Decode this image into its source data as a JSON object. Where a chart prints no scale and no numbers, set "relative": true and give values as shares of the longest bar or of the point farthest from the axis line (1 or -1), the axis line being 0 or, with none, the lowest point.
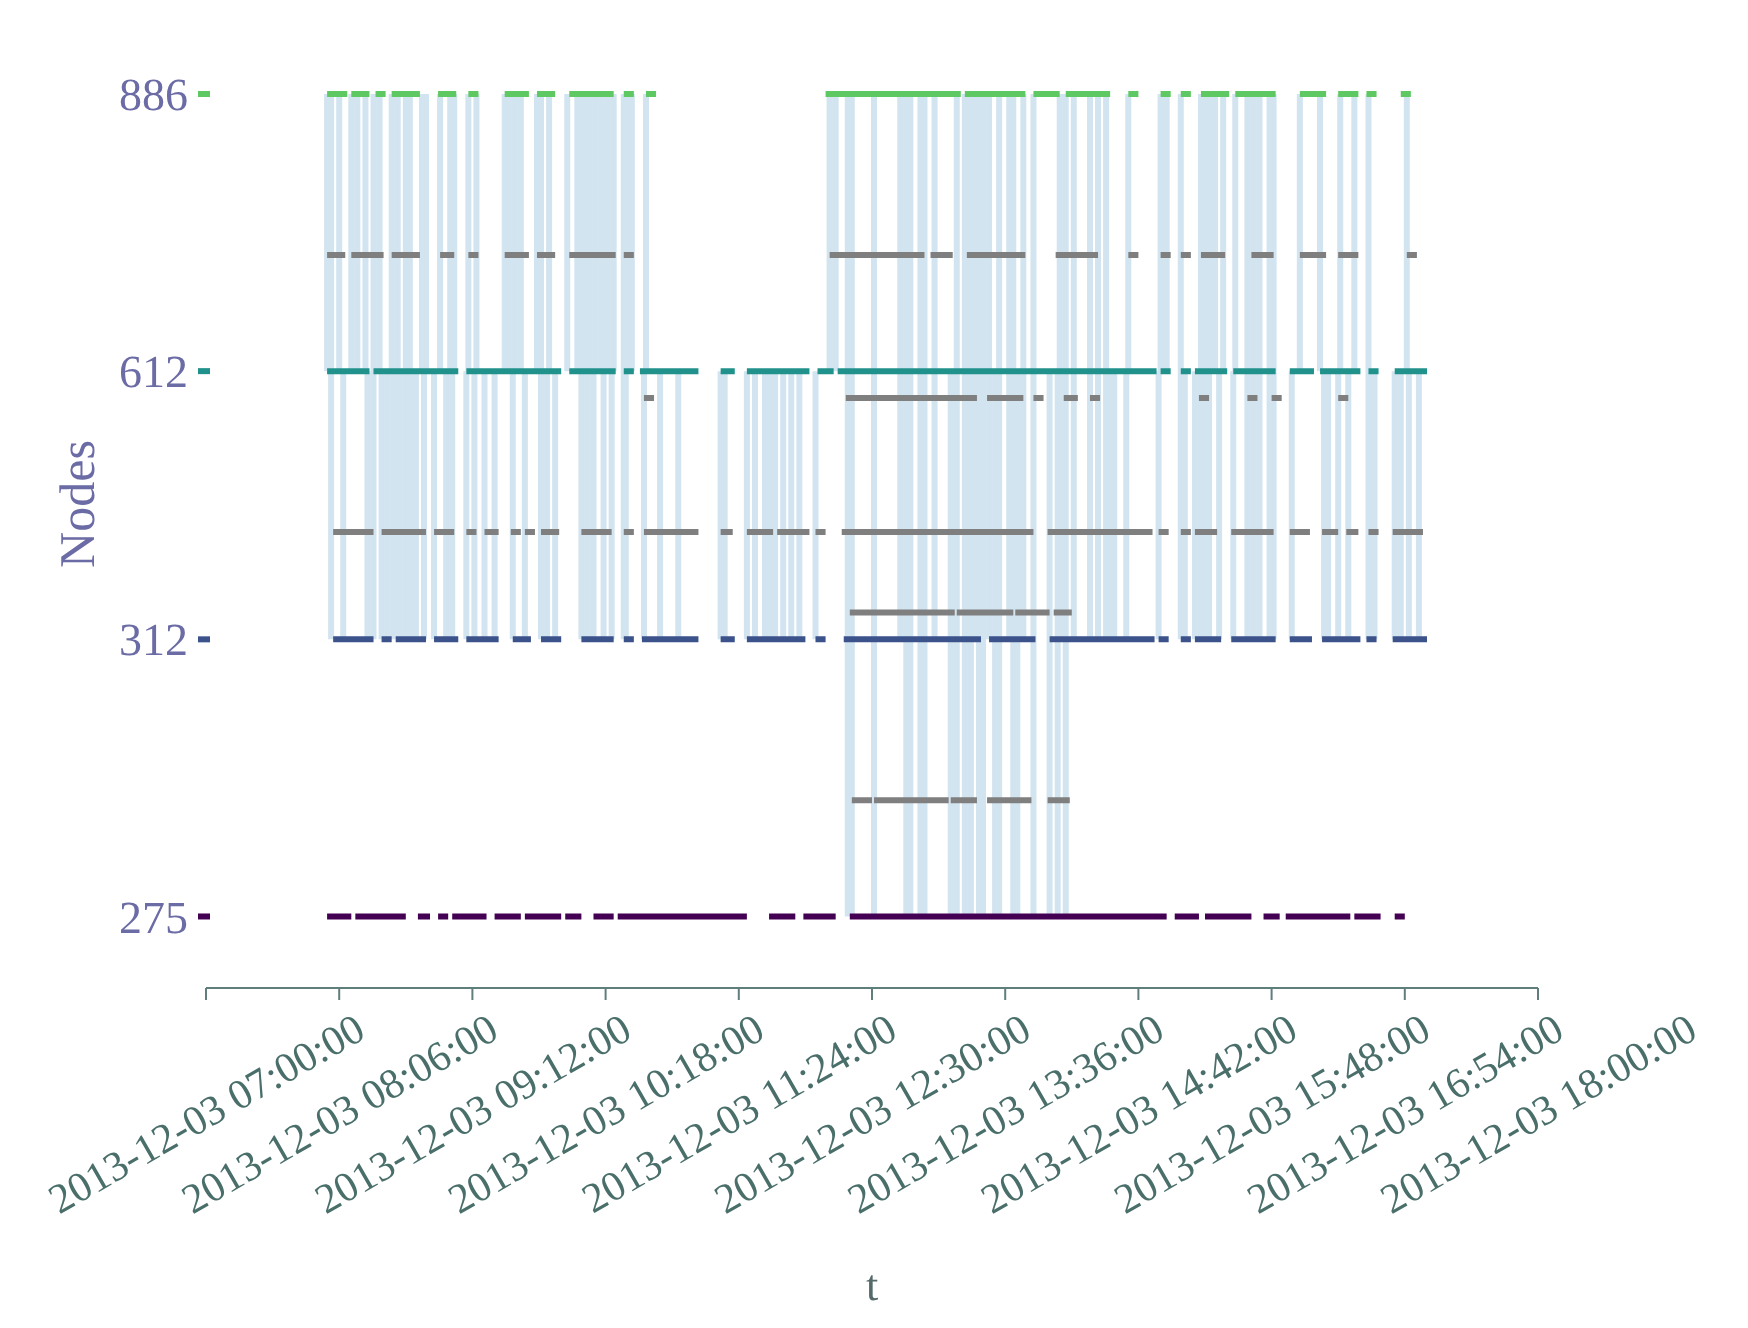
{
  "chart_data": {
    "type": "line",
    "xlabel": "t",
    "ylabel": "Nodes",
    "relative": true,
    "legend": "left",
    "xlim": [
      "2013-12-03T07:00",
      "2013-12-03T18:00"
    ],
    "xticks": [
      {
        "value": "2013-12-03T07:00",
        "label": "2013-12-03 07:00:00"
      },
      {
        "value": "2013-12-03T08:06",
        "label": "2013-12-03 08:06:00"
      },
      {
        "value": "2013-12-03T09:12",
        "label": "2013-12-03 09:12:00"
      },
      {
        "value": "2013-12-03T10:18",
        "label": "2013-12-03 10:18:00"
      },
      {
        "value": "2013-12-03T11:24",
        "label": "2013-12-03 11:24:00"
      },
      {
        "value": "2013-12-03T12:30",
        "label": "2013-12-03 12:30:00"
      },
      {
        "value": "2013-12-03T13:36",
        "label": "2013-12-03 13:36:00"
      },
      {
        "value": "2013-12-03T14:42",
        "label": "2013-12-03 14:42:00"
      },
      {
        "value": "2013-12-03T15:48",
        "label": "2013-12-03 15:48:00"
      },
      {
        "value": "2013-12-03T16:54",
        "label": "2013-12-03 16:54:00"
      },
      {
        "value": "2013-12-03T18:00",
        "label": "2013-12-03 18:00:00"
      }
    ],
    "series": [
      {
        "color": "#d2e4f0",
        "x": [
          "2013-12-03T08:00",
          "2013-12-03T08:00",
          null,
          "2013-12-03T08:02",
          "2013-12-03T08:02",
          null,
          "2013-12-03T08:06",
          "2013-12-03T08:06",
          null,
          "2013-12-03T08:08",
          "2013-12-03T08:08",
          null,
          "2013-12-03T08:12",
          "2013-12-03T08:12",
          null,
          "2013-12-03T08:15",
          "2013-12-03T08:15",
          null,
          "2013-12-03T08:19",
          "2013-12-03T08:19",
          null,
          "2013-12-03T08:20",
          "2013-12-03T08:20",
          null,
          "2013-12-03T08:23",
          "2013-12-03T08:23",
          null,
          "2013-12-03T08:26",
          "2013-12-03T08:26",
          null,
          "2013-12-03T08:27",
          "2013-12-03T08:27",
          null,
          "2013-12-03T08:30",
          "2013-12-03T08:30",
          null,
          "2013-12-03T08:32",
          "2013-12-03T08:32",
          null,
          "2013-12-03T08:33",
          "2013-12-03T08:33",
          null,
          "2013-12-03T08:35",
          "2013-12-03T08:35",
          null,
          "2013-12-03T08:36",
          "2013-12-03T08:36",
          null,
          "2013-12-03T08:39",
          "2013-12-03T08:39",
          null,
          "2013-12-03T08:41",
          "2013-12-03T08:41",
          null,
          "2013-12-03T08:44",
          "2013-12-03T08:44",
          null,
          "2013-12-03T08:47",
          "2013-12-03T08:47",
          null,
          "2013-12-03T08:48",
          "2013-12-03T08:48",
          null,
          "2013-12-03T08:49",
          "2013-12-03T08:49",
          null,
          "2013-12-03T08:53",
          "2013-12-03T08:53",
          null,
          "2013-12-03T08:56",
          "2013-12-03T08:56",
          null,
          "2013-12-03T08:59",
          "2013-12-03T08:59",
          null,
          "2013-12-03T09:01",
          "2013-12-03T09:01",
          null,
          "2013-12-03T09:02",
          "2013-12-03T09:02",
          null,
          "2013-12-03T09:03",
          "2013-12-03T09:03",
          null,
          "2013-12-03T09:09",
          "2013-12-03T09:09",
          null,
          "2013-12-03T09:10",
          "2013-12-03T09:10",
          null,
          "2013-12-03T09:13",
          "2013-12-03T09:13",
          null,
          "2013-12-03T09:14",
          "2013-12-03T09:14",
          null,
          "2013-12-03T09:18",
          "2013-12-03T09:18",
          null,
          "2013-12-03T09:23",
          "2013-12-03T09:23",
          null,
          "2013-12-03T09:28",
          "2013-12-03T09:28",
          null,
          "2013-12-03T09:30",
          "2013-12-03T09:30",
          null,
          "2013-12-03T09:32",
          "2013-12-03T09:32",
          null,
          "2013-12-03T09:33",
          "2013-12-03T09:33",
          null,
          "2013-12-03T09:36",
          "2013-12-03T09:36",
          null,
          "2013-12-03T09:38",
          "2013-12-03T09:38",
          null,
          "2013-12-03T09:44",
          "2013-12-03T09:44",
          null,
          "2013-12-03T09:46",
          "2013-12-03T09:46",
          null,
          "2013-12-03T09:49",
          "2013-12-03T09:49",
          null,
          "2013-12-03T09:50",
          "2013-12-03T09:50",
          null,
          "2013-12-03T09:53",
          "2013-12-03T09:53",
          null,
          "2013-12-03T09:59",
          "2013-12-03T09:59",
          null,
          "2013-12-03T10:04",
          "2013-12-03T10:04",
          null,
          "2013-12-03T10:06",
          "2013-12-03T10:06",
          null,
          "2013-12-03T10:08",
          "2013-12-03T10:08",
          null,
          "2013-12-03T10:09",
          "2013-12-03T10:09",
          null,
          "2013-12-03T10:10",
          "2013-12-03T10:10",
          null,
          "2013-12-03T10:12",
          "2013-12-03T10:12",
          null,
          "2013-12-03T10:13",
          "2013-12-03T10:13",
          null,
          "2013-12-03T10:16",
          "2013-12-03T10:16",
          null,
          "2013-12-03T10:17",
          "2013-12-03T10:17",
          null,
          "2013-12-03T10:19",
          "2013-12-03T10:19",
          null,
          "2013-12-03T10:21",
          "2013-12-03T10:21",
          null,
          "2013-12-03T10:22",
          "2013-12-03T10:22",
          null,
          "2013-12-03T10:27",
          "2013-12-03T10:27",
          null,
          "2013-12-03T10:28",
          "2013-12-03T10:28",
          null,
          "2013-12-03T10:29",
          "2013-12-03T10:29",
          null,
          "2013-12-03T10:31",
          "2013-12-03T10:31",
          null,
          "2013-12-03T10:37",
          "2013-12-03T10:37",
          null,
          "2013-12-03T10:38",
          "2013-12-03T10:38",
          null,
          "2013-12-03T10:45",
          "2013-12-03T10:45",
          null,
          "2013-12-03T10:54",
          "2013-12-03T10:54",
          null,
          "2013-12-03T11:15",
          "2013-12-03T11:15",
          null,
          "2013-12-03T11:17",
          "2013-12-03T11:17",
          null,
          "2013-12-03T11:28",
          "2013-12-03T11:28",
          null,
          "2013-12-03T11:32",
          "2013-12-03T11:32",
          null,
          "2013-12-03T11:37",
          "2013-12-03T11:37",
          null,
          "2013-12-03T11:39",
          "2013-12-03T11:39",
          null,
          "2013-12-03T11:42",
          "2013-12-03T11:42",
          null,
          "2013-12-03T11:46",
          "2013-12-03T11:46",
          null,
          "2013-12-03T11:50",
          "2013-12-03T11:50",
          null,
          "2013-12-03T11:54",
          "2013-12-03T11:54",
          null,
          "2013-12-03T12:02",
          "2013-12-03T12:02",
          null,
          "2013-12-03T12:09",
          "2013-12-03T12:09",
          null,
          "2013-12-03T12:12",
          "2013-12-03T12:12",
          null,
          "2013-12-03T12:18",
          "2013-12-03T12:18",
          null,
          "2013-12-03T12:20",
          "2013-12-03T12:20",
          null,
          "2013-12-03T12:31",
          "2013-12-03T12:31",
          null,
          "2013-12-03T12:44",
          "2013-12-03T12:44",
          null,
          "2013-12-03T12:47",
          "2013-12-03T12:47",
          null,
          "2013-12-03T12:49",
          "2013-12-03T12:49",
          null,
          "2013-12-03T12:54",
          "2013-12-03T12:54",
          null,
          "2013-12-03T12:56",
          "2013-12-03T12:56",
          null,
          "2013-12-03T13:01",
          "2013-12-03T13:01",
          null,
          "2013-12-03T13:09",
          "2013-12-03T13:09",
          null,
          "2013-12-03T13:12",
          "2013-12-03T13:12",
          null,
          "2013-12-03T13:16",
          "2013-12-03T13:16",
          null,
          "2013-12-03T13:18",
          "2013-12-03T13:18",
          null,
          "2013-12-03T13:19",
          "2013-12-03T13:19",
          null,
          "2013-12-03T13:21",
          "2013-12-03T13:21",
          null,
          "2013-12-03T13:23",
          "2013-12-03T13:23",
          null,
          "2013-12-03T13:25",
          "2013-12-03T13:25",
          null,
          "2013-12-03T13:28",
          "2013-12-03T13:28",
          null,
          "2013-12-03T13:31",
          "2013-12-03T13:31",
          null,
          "2013-12-03T13:33",
          "2013-12-03T13:33",
          null,
          "2013-12-03T13:38",
          "2013-12-03T13:38",
          null,
          "2013-12-03T13:40",
          "2013-12-03T13:40",
          null,
          "2013-12-03T13:42",
          "2013-12-03T13:42",
          null,
          "2013-12-03T13:45",
          "2013-12-03T13:45",
          null,
          "2013-12-03T13:50",
          "2013-12-03T13:50",
          null,
          "2013-12-03T13:58",
          "2013-12-03T13:58",
          null,
          "2013-12-03T14:02",
          "2013-12-03T14:02",
          null,
          "2013-12-03T14:03",
          "2013-12-03T14:03",
          null,
          "2013-12-03T14:06",
          "2013-12-03T14:06",
          null,
          "2013-12-03T14:10",
          "2013-12-03T14:10",
          null,
          "2013-12-03T14:18",
          "2013-12-03T14:18",
          null,
          "2013-12-03T14:22",
          "2013-12-03T14:22",
          null,
          "2013-12-03T14:26",
          "2013-12-03T14:26",
          null,
          "2013-12-03T14:28",
          "2013-12-03T14:28",
          null,
          "2013-12-03T14:30",
          "2013-12-03T14:30",
          null,
          "2013-12-03T14:36",
          "2013-12-03T14:36",
          null,
          "2013-12-03T14:37",
          "2013-12-03T14:37",
          null,
          "2013-12-03T14:52",
          "2013-12-03T14:52",
          null,
          "2013-12-03T14:53",
          "2013-12-03T14:53",
          null,
          "2013-12-03T14:56",
          "2013-12-03T14:56",
          null,
          "2013-12-03T15:03",
          "2013-12-03T15:03",
          null,
          "2013-12-03T15:05",
          "2013-12-03T15:05",
          null,
          "2013-12-03T15:10",
          "2013-12-03T15:10",
          null,
          "2013-12-03T15:13",
          "2013-12-03T15:13",
          null,
          "2013-12-03T15:15",
          "2013-12-03T15:15",
          null,
          "2013-12-03T15:17",
          "2013-12-03T15:17",
          null,
          "2013-12-03T15:20",
          "2013-12-03T15:20",
          null,
          "2013-12-03T15:22",
          "2013-12-03T15:22",
          null,
          "2013-12-03T15:24",
          "2013-12-03T15:24",
          null,
          "2013-12-03T15:29",
          "2013-12-03T15:29",
          null,
          "2013-12-03T15:30",
          "2013-12-03T15:30",
          null,
          "2013-12-03T15:36",
          "2013-12-03T15:36",
          null,
          "2013-12-03T15:39",
          "2013-12-03T15:39",
          null,
          "2013-12-03T15:42",
          "2013-12-03T15:42",
          null,
          "2013-12-03T15:47",
          "2013-12-03T15:47",
          null,
          "2013-12-03T15:49",
          "2013-12-03T15:49",
          null,
          "2013-12-03T15:58",
          "2013-12-03T15:58",
          null,
          "2013-12-03T16:02",
          "2013-12-03T16:02",
          null,
          "2013-12-03T16:12",
          "2013-12-03T16:12",
          null,
          "2013-12-03T16:14",
          "2013-12-03T16:14",
          null,
          "2013-12-03T16:16",
          "2013-12-03T16:16",
          null,
          "2013-12-03T16:21",
          "2013-12-03T16:21",
          null,
          "2013-12-03T16:22",
          "2013-12-03T16:22",
          null,
          "2013-12-03T16:26",
          "2013-12-03T16:26",
          null,
          "2013-12-03T16:29",
          "2013-12-03T16:29",
          null,
          "2013-12-03T16:36",
          "2013-12-03T16:36",
          null,
          "2013-12-03T16:39",
          "2013-12-03T16:39",
          null,
          "2013-12-03T16:49",
          "2013-12-03T16:49",
          null,
          "2013-12-03T16:52",
          "2013-12-03T16:52",
          null,
          "2013-12-03T16:55",
          "2013-12-03T16:55",
          null,
          "2013-12-03T16:56",
          "2013-12-03T16:56",
          null,
          "2013-12-03T17:01",
          "2013-12-03T17:01",
          null
        ],
        "values": [
          0.69,
          1,
          null,
          0.39,
          1,
          null,
          0.69,
          1,
          null,
          0.39,
          0.69,
          null,
          0.69,
          1,
          null,
          0.69,
          1,
          null,
          0.69,
          1,
          null,
          0.39,
          0.69,
          null,
          0.39,
          1,
          null,
          0.69,
          1,
          null,
          0.39,
          0.69,
          null,
          0.39,
          0.69,
          null,
          0.69,
          1,
          null,
          0.39,
          0.69,
          null,
          0.69,
          1,
          null,
          0.39,
          0.69,
          null,
          0.39,
          1,
          null,
          0.39,
          1,
          null,
          0.39,
          0.69,
          null,
          0.69,
          1,
          null,
          0.39,
          0.69,
          null,
          0.69,
          1,
          null,
          0.39,
          0.69,
          null,
          0.69,
          1,
          null,
          0.39,
          0.69,
          null,
          0.69,
          1,
          null,
          0.39,
          0.69,
          null,
          0.69,
          1,
          null,
          0.39,
          0.69,
          null,
          0.69,
          1,
          null,
          0.39,
          0.69,
          null,
          0.69,
          1,
          null,
          0.39,
          0.69,
          null,
          0.39,
          0.69,
          null,
          0.69,
          1,
          null,
          0.69,
          1,
          null,
          0.39,
          0.69,
          null,
          0.69,
          1,
          null,
          0.69,
          1,
          null,
          0.39,
          0.69,
          null,
          0.69,
          1,
          null,
          0.39,
          1,
          null,
          0.39,
          0.69,
          null,
          0.69,
          1,
          null,
          0.39,
          0.69,
          null,
          0.69,
          1,
          null,
          0.69,
          1,
          null,
          0.39,
          1,
          null,
          0.69,
          1,
          null,
          0.39,
          0.69,
          null,
          0.69,
          1,
          null,
          0.39,
          0.69,
          null,
          0.69,
          1,
          null,
          0.69,
          1,
          null,
          0.39,
          0.69,
          null,
          0.69,
          1,
          null,
          0.39,
          0.69,
          null,
          0.69,
          1,
          null,
          0.39,
          1,
          null,
          0.39,
          0.69,
          null,
          0.69,
          1,
          null,
          0.69,
          1,
          null,
          0.39,
          0.69,
          null,
          0.69,
          1,
          null,
          0.39,
          0.69,
          null,
          0.39,
          0.69,
          null,
          0.39,
          0.69,
          null,
          0.39,
          0.69,
          null,
          0.39,
          0.69,
          null,
          0.39,
          0.69,
          null,
          0.39,
          0.69,
          null,
          0.39,
          0.69,
          null,
          0.39,
          0.69,
          null,
          0.39,
          0.69,
          null,
          0.39,
          0.69,
          null,
          0.39,
          0.69,
          null,
          0.39,
          0.69,
          null,
          0.69,
          1,
          null,
          0.69,
          1,
          null,
          0.08,
          1,
          null,
          0.08,
          1,
          null,
          0.08,
          1,
          null,
          0.39,
          1,
          null,
          0.08,
          1,
          null,
          0.08,
          1,
          null,
          0.08,
          1,
          null,
          0.08,
          1,
          null,
          0.39,
          1,
          null,
          0.08,
          0.69,
          null,
          0.08,
          1,
          null,
          0.08,
          1,
          null,
          0.39,
          1,
          null,
          0.08,
          1,
          null,
          0.39,
          1,
          null,
          0.08,
          1,
          null,
          0.08,
          1,
          null,
          0.39,
          1,
          null,
          0.08,
          0.69,
          null,
          0.08,
          1,
          null,
          0.39,
          1,
          null,
          0.08,
          1,
          null,
          0.08,
          0.69,
          null,
          0.39,
          1,
          null,
          0.08,
          1,
          null,
          0.08,
          0.69,
          null,
          0.08,
          0.69,
          null,
          0.39,
          1,
          null,
          0.08,
          1,
          null,
          0.39,
          1,
          null,
          0.39,
          1,
          null,
          0.39,
          1,
          null,
          0.39,
          1,
          null,
          0.39,
          0.69,
          null,
          0.39,
          0.69,
          null,
          0.39,
          0.69,
          null,
          0.69,
          1,
          null,
          0.39,
          0.69,
          null,
          0.69,
          1,
          null,
          0.69,
          1,
          null,
          0.39,
          1,
          null,
          0.39,
          0.69,
          null,
          0.39,
          0.69,
          null,
          0.39,
          1,
          null,
          0.39,
          1,
          null,
          0.39,
          1,
          null,
          0.69,
          1,
          null,
          0.39,
          0.69,
          null,
          0.69,
          1,
          null,
          0.39,
          0.69,
          null,
          0.69,
          1,
          null,
          0.39,
          1,
          null,
          0.39,
          1,
          null,
          0.39,
          1,
          null,
          0.39,
          1,
          null,
          0.39,
          1,
          null,
          0.39,
          0.69,
          null,
          0.69,
          1,
          null,
          0.69,
          1,
          null,
          0.39,
          0.69,
          null,
          0.39,
          0.69,
          null,
          0.39,
          0.69,
          null,
          0.69,
          1,
          null,
          0.39,
          0.69,
          null,
          0.69,
          1,
          null,
          0.39,
          1,
          null,
          0.39,
          0.69,
          null,
          0.39,
          0.69,
          null,
          0.39,
          0.69,
          null,
          0.69,
          1,
          null,
          0.39,
          0.69,
          null,
          0.39,
          0.69,
          null
        ]
      },
      {
        "color": "#7f7f7f",
        "x": [
          "2013-12-03T08:00",
          "2013-12-03T08:09",
          null,
          "2013-12-03T08:12",
          "2013-12-03T08:28",
          null,
          "2013-12-03T08:32",
          "2013-12-03T08:46",
          null,
          "2013-12-03T08:56",
          "2013-12-03T09:03",
          null,
          "2013-12-03T09:10",
          "2013-12-03T09:15",
          null,
          "2013-12-03T09:28",
          "2013-12-03T09:40",
          null,
          "2013-12-03T09:44",
          "2013-12-03T09:53",
          null,
          "2013-12-03T10:00",
          "2013-12-03T10:23",
          null,
          "2013-12-03T10:27",
          "2013-12-03T10:32",
          null,
          "2013-12-03T12:09",
          "2013-12-03T12:56",
          null,
          "2013-12-03T12:59",
          "2013-12-03T13:10",
          null,
          "2013-12-03T13:17",
          "2013-12-03T13:46",
          null,
          "2013-12-03T14:01",
          "2013-12-03T14:22",
          null,
          "2013-12-03T14:37",
          "2013-12-03T14:42",
          null,
          "2013-12-03T14:53",
          "2013-12-03T14:58",
          null,
          "2013-12-03T15:03",
          "2013-12-03T15:08",
          null,
          "2013-12-03T15:13",
          "2013-12-03T15:25",
          null,
          "2013-12-03T15:38",
          "2013-12-03T15:49",
          null,
          "2013-12-03T16:02",
          "2013-12-03T16:15",
          null,
          "2013-12-03T16:21",
          "2013-12-03T16:31",
          null,
          "2013-12-03T16:55",
          "2013-12-03T17:00",
          null
        ],
        "values": [
          0.82,
          0.82,
          null,
          0.82,
          0.82,
          null,
          0.82,
          0.82,
          null,
          0.82,
          0.82,
          null,
          0.82,
          0.82,
          null,
          0.82,
          0.82,
          null,
          0.82,
          0.82,
          null,
          0.82,
          0.82,
          null,
          0.82,
          0.82,
          null,
          0.82,
          0.82,
          null,
          0.82,
          0.82,
          null,
          0.82,
          0.82,
          null,
          0.82,
          0.82,
          null,
          0.82,
          0.82,
          null,
          0.82,
          0.82,
          null,
          0.82,
          0.82,
          null,
          0.82,
          0.82,
          null,
          0.82,
          0.82,
          null,
          0.82,
          0.82,
          null,
          0.82,
          0.82,
          null,
          0.82,
          0.82,
          null
        ]
      },
      {
        "color": "#7f7f7f",
        "x": [
          "2013-12-03T10:37",
          "2013-12-03T10:42",
          null,
          "2013-12-03T12:17",
          "2013-12-03T13:22",
          null,
          "2013-12-03T13:27",
          "2013-12-03T13:45",
          null,
          "2013-12-03T13:50",
          "2013-12-03T13:55",
          null,
          "2013-12-03T14:05",
          "2013-12-03T14:12",
          null,
          "2013-12-03T14:18",
          "2013-12-03T14:23",
          null,
          "2013-12-03T15:12",
          "2013-12-03T15:17",
          null,
          "2013-12-03T15:36",
          "2013-12-03T15:41",
          null,
          "2013-12-03T15:48",
          "2013-12-03T15:53",
          null,
          "2013-12-03T16:21",
          "2013-12-03T16:26",
          null
        ],
        "values": [
          0.66,
          0.66,
          null,
          0.66,
          0.66,
          null,
          0.66,
          0.66,
          null,
          0.66,
          0.66,
          null,
          0.66,
          0.66,
          null,
          0.66,
          0.66,
          null,
          0.66,
          0.66,
          null,
          0.66,
          0.66,
          null,
          0.66,
          0.66,
          null,
          0.66,
          0.66,
          null
        ]
      },
      {
        "color": "#7f7f7f",
        "x": [
          "2013-12-03T08:03",
          "2013-12-03T08:23",
          null,
          "2013-12-03T08:27",
          "2013-12-03T08:49",
          null,
          "2013-12-03T08:53",
          "2013-12-03T09:03",
          null,
          "2013-12-03T09:09",
          "2013-12-03T09:14",
          null,
          "2013-12-03T09:18",
          "2013-12-03T09:25",
          null,
          "2013-12-03T09:31",
          "2013-12-03T09:36",
          null,
          "2013-12-03T09:38",
          "2013-12-03T09:43",
          null,
          "2013-12-03T09:46",
          "2013-12-03T09:55",
          null,
          "2013-12-03T10:06",
          "2013-12-03T10:21",
          null,
          "2013-12-03T10:27",
          "2013-12-03T10:32",
          null,
          "2013-12-03T10:37",
          "2013-12-03T11:04",
          null,
          "2013-12-03T11:15",
          "2013-12-03T11:21",
          null,
          "2013-12-03T11:28",
          "2013-12-03T11:41",
          null,
          "2013-12-03T11:43",
          "2013-12-03T11:59",
          null,
          "2013-12-03T12:02",
          "2013-12-03T12:07",
          null,
          "2013-12-03T12:15",
          "2013-12-03T13:50",
          null,
          "2013-12-03T13:57",
          "2013-12-03T14:49",
          null,
          "2013-12-03T14:52",
          "2013-12-03T14:57",
          null,
          "2013-12-03T15:03",
          "2013-12-03T15:08",
          null,
          "2013-12-03T15:10",
          "2013-12-03T15:21",
          null,
          "2013-12-03T15:28",
          "2013-12-03T15:49",
          null,
          "2013-12-03T15:57",
          "2013-12-03T16:07",
          null,
          "2013-12-03T16:13",
          "2013-12-03T16:21",
          null,
          "2013-12-03T16:25",
          "2013-12-03T16:31",
          null,
          "2013-12-03T16:36",
          "2013-12-03T16:41",
          null,
          "2013-12-03T16:48",
          "2013-12-03T17:03",
          null
        ],
        "values": [
          0.51,
          0.51,
          null,
          0.51,
          0.51,
          null,
          0.51,
          0.51,
          null,
          0.51,
          0.51,
          null,
          0.51,
          0.51,
          null,
          0.51,
          0.51,
          null,
          0.51,
          0.51,
          null,
          0.51,
          0.51,
          null,
          0.51,
          0.51,
          null,
          0.51,
          0.51,
          null,
          0.51,
          0.51,
          null,
          0.51,
          0.51,
          null,
          0.51,
          0.51,
          null,
          0.51,
          0.51,
          null,
          0.51,
          0.51,
          null,
          0.51,
          0.51,
          null,
          0.51,
          0.51,
          null,
          0.51,
          0.51,
          null,
          0.51,
          0.51,
          null,
          0.51,
          0.51,
          null,
          0.51,
          0.51,
          null,
          0.51,
          0.51,
          null,
          0.51,
          0.51,
          null,
          0.51,
          0.51,
          null,
          0.51,
          0.51,
          null,
          0.51,
          0.51,
          null
        ]
      },
      {
        "color": "#7f7f7f",
        "x": [
          "2013-12-03T12:19",
          "2013-12-03T13:11",
          null,
          "2013-12-03T13:12",
          "2013-12-03T13:40",
          null,
          "2013-12-03T13:41",
          "2013-12-03T13:58",
          null,
          "2013-12-03T14:00",
          "2013-12-03T14:09",
          null
        ],
        "values": [
          0.42,
          0.42,
          null,
          0.42,
          0.42,
          null,
          0.42,
          0.42,
          null,
          0.42,
          0.42,
          null
        ]
      },
      {
        "color": "#7f7f7f",
        "x": [
          "2013-12-03T12:20",
          "2013-12-03T12:30",
          null,
          "2013-12-03T12:31",
          "2013-12-03T13:08",
          null,
          "2013-12-03T13:09",
          "2013-12-03T13:22",
          null,
          "2013-12-03T13:27",
          "2013-12-03T13:49",
          null,
          "2013-12-03T13:57",
          "2013-12-03T14:08",
          null
        ],
        "values": [
          0.21,
          0.21,
          null,
          0.21,
          0.21,
          null,
          0.21,
          0.21,
          null,
          0.21,
          0.21,
          null,
          0.21,
          0.21,
          null
        ]
      },
      {
        "name": "886",
        "color": "#5ec962",
        "x": [
          "2013-12-03T08:00",
          "2013-12-03T08:10",
          null,
          "2013-12-03T08:12",
          "2013-12-03T08:21",
          null,
          "2013-12-03T08:24",
          "2013-12-03T08:29",
          null,
          "2013-12-03T08:32",
          "2013-12-03T08:46",
          null,
          "2013-12-03T08:55",
          "2013-12-03T09:04",
          null,
          "2013-12-03T09:10",
          "2013-12-03T09:15",
          null,
          "2013-12-03T09:28",
          "2013-12-03T09:40",
          null,
          "2013-12-03T09:44",
          "2013-12-03T09:53",
          null,
          "2013-12-03T10:00",
          "2013-12-03T10:22",
          null,
          "2013-12-03T10:27",
          "2013-12-03T10:32",
          null,
          "2013-12-03T10:38",
          "2013-12-03T10:43",
          null,
          "2013-12-03T12:07",
          "2013-12-03T13:14",
          null,
          "2013-12-03T13:16",
          "2013-12-03T13:46",
          null,
          "2013-12-03T13:50",
          "2013-12-03T14:03",
          null,
          "2013-12-03T14:06",
          "2013-12-03T14:28",
          null,
          "2013-12-03T14:37",
          "2013-12-03T14:42",
          null,
          "2013-12-03T14:53",
          "2013-12-03T14:58",
          null,
          "2013-12-03T15:03",
          "2013-12-03T15:08",
          null,
          "2013-12-03T15:13",
          "2013-12-03T15:27",
          null,
          "2013-12-03T15:30",
          "2013-12-03T15:50",
          null,
          "2013-12-03T16:02",
          "2013-12-03T16:15",
          null,
          "2013-12-03T16:21",
          "2013-12-03T16:31",
          null,
          "2013-12-03T16:35",
          "2013-12-03T16:40",
          null,
          "2013-12-03T16:52",
          "2013-12-03T16:57",
          null
        ],
        "values": [
          1,
          1,
          null,
          1,
          1,
          null,
          1,
          1,
          null,
          1,
          1,
          null,
          1,
          1,
          null,
          1,
          1,
          null,
          1,
          1,
          null,
          1,
          1,
          null,
          1,
          1,
          null,
          1,
          1,
          null,
          1,
          1,
          null,
          1,
          1,
          null,
          1,
          1,
          null,
          1,
          1,
          null,
          1,
          1,
          null,
          1,
          1,
          null,
          1,
          1,
          null,
          1,
          1,
          null,
          1,
          1,
          null,
          1,
          1,
          null,
          1,
          1,
          null,
          1,
          1,
          null,
          1,
          1,
          null,
          1,
          1,
          null
        ]
      },
      {
        "name": "612",
        "color": "#21918c",
        "x": [
          "2013-12-03T08:00",
          "2013-12-03T08:21",
          null,
          "2013-12-03T08:23",
          "2013-12-03T09:05",
          null,
          "2013-12-03T09:09",
          "2013-12-03T09:56",
          null,
          "2013-12-03T10:00",
          "2013-12-03T10:23",
          null,
          "2013-12-03T10:27",
          "2013-12-03T10:32",
          null,
          "2013-12-03T10:35",
          "2013-12-03T11:04",
          null,
          "2013-12-03T11:15",
          "2013-12-03T11:22",
          null,
          "2013-12-03T11:28",
          "2013-12-03T11:59",
          null,
          "2013-12-03T12:03",
          "2013-12-03T12:11",
          null,
          "2013-12-03T12:13",
          "2013-12-03T14:51",
          null,
          "2013-12-03T14:53",
          "2013-12-03T14:58",
          null,
          "2013-12-03T15:03",
          "2013-12-03T15:08",
          null,
          "2013-12-03T15:10",
          "2013-12-03T15:26",
          null,
          "2013-12-03T15:29",
          "2013-12-03T15:50",
          null,
          "2013-12-03T15:57",
          "2013-12-03T16:09",
          null,
          "2013-12-03T16:12",
          "2013-12-03T16:32",
          null,
          "2013-12-03T16:36",
          "2013-12-03T16:41",
          null,
          "2013-12-03T16:49",
          "2013-12-03T17:05",
          null
        ],
        "values": [
          0.69,
          0.69,
          null,
          0.69,
          0.69,
          null,
          0.69,
          0.69,
          null,
          0.69,
          0.69,
          null,
          0.69,
          0.69,
          null,
          0.69,
          0.69,
          null,
          0.69,
          0.69,
          null,
          0.69,
          0.69,
          null,
          0.69,
          0.69,
          null,
          0.69,
          0.69,
          null,
          0.69,
          0.69,
          null,
          0.69,
          0.69,
          null,
          0.69,
          0.69,
          null,
          0.69,
          0.69,
          null,
          0.69,
          0.69,
          null,
          0.69,
          0.69,
          null,
          0.69,
          0.69,
          null,
          0.69,
          0.69,
          null
        ]
      },
      {
        "name": "312",
        "color": "#3b528b",
        "x": [
          "2013-12-03T08:03",
          "2013-12-03T08:23",
          null,
          "2013-12-03T08:27",
          "2013-12-03T08:32",
          null,
          "2013-12-03T08:34",
          "2013-12-03T08:49",
          null,
          "2013-12-03T08:53",
          "2013-12-03T09:05",
          null,
          "2013-12-03T09:09",
          "2013-12-03T09:25",
          null,
          "2013-12-03T09:32",
          "2013-12-03T09:41",
          null,
          "2013-12-03T09:46",
          "2013-12-03T09:56",
          null,
          "2013-12-03T10:06",
          "2013-12-03T10:22",
          null,
          "2013-12-03T10:27",
          "2013-12-03T10:32",
          null,
          "2013-12-03T10:36",
          "2013-12-03T11:04",
          null,
          "2013-12-03T11:15",
          "2013-12-03T11:22",
          null,
          "2013-12-03T11:28",
          "2013-12-03T11:57",
          null,
          "2013-12-03T12:02",
          "2013-12-03T12:07",
          null,
          "2013-12-03T12:16",
          "2013-12-03T13:24",
          null,
          "2013-12-03T13:28",
          "2013-12-03T13:51",
          null,
          "2013-12-03T13:58",
          "2013-12-03T14:50",
          null,
          "2013-12-03T14:52",
          "2013-12-03T14:57",
          null,
          "2013-12-03T15:03",
          "2013-12-03T15:08",
          null,
          "2013-12-03T15:10",
          "2013-12-03T15:23",
          null,
          "2013-12-03T15:28",
          "2013-12-03T15:50",
          null,
          "2013-12-03T15:57",
          "2013-12-03T16:08",
          null,
          "2013-12-03T16:13",
          "2013-12-03T16:32",
          null,
          "2013-12-03T16:35",
          "2013-12-03T16:40",
          null,
          "2013-12-03T16:48",
          "2013-12-03T17:05",
          null
        ],
        "values": [
          0.39,
          0.39,
          null,
          0.39,
          0.39,
          null,
          0.39,
          0.39,
          null,
          0.39,
          0.39,
          null,
          0.39,
          0.39,
          null,
          0.39,
          0.39,
          null,
          0.39,
          0.39,
          null,
          0.39,
          0.39,
          null,
          0.39,
          0.39,
          null,
          0.39,
          0.39,
          null,
          0.39,
          0.39,
          null,
          0.39,
          0.39,
          null,
          0.39,
          0.39,
          null,
          0.39,
          0.39,
          null,
          0.39,
          0.39,
          null,
          0.39,
          0.39,
          null,
          0.39,
          0.39,
          null,
          0.39,
          0.39,
          null,
          0.39,
          0.39,
          null,
          0.39,
          0.39,
          null,
          0.39,
          0.39,
          null,
          0.39,
          0.39,
          null,
          0.39,
          0.39,
          null,
          0.39,
          0.39,
          null
        ]
      },
      {
        "name": "275",
        "color": "#440154",
        "x": [
          "2013-12-03T08:00",
          "2013-12-03T08:12",
          null,
          "2013-12-03T08:14",
          "2013-12-03T08:39",
          null,
          "2013-12-03T08:45",
          "2013-12-03T08:51",
          null,
          "2013-12-03T08:55",
          "2013-12-03T09:00",
          null,
          "2013-12-03T09:02",
          "2013-12-03T09:19",
          null,
          "2013-12-03T09:23",
          "2013-12-03T09:36",
          null,
          "2013-12-03T09:38",
          "2013-12-03T09:56",
          null,
          "2013-12-03T09:58",
          "2013-12-03T10:06",
          null,
          "2013-12-03T10:12",
          "2013-12-03T10:22",
          null,
          "2013-12-03T10:24",
          "2013-12-03T11:28",
          null,
          "2013-12-03T11:39",
          "2013-12-03T11:52",
          null,
          "2013-12-03T11:56",
          "2013-12-03T12:12",
          null,
          "2013-12-03T12:19",
          "2013-12-03T14:56",
          null,
          "2013-12-03T15:00",
          "2013-12-03T15:12",
          null,
          "2013-12-03T15:15",
          "2013-12-03T15:38",
          null,
          "2013-12-03T15:44",
          "2013-12-03T15:52",
          null,
          "2013-12-03T15:55",
          "2013-12-03T16:27",
          null,
          "2013-12-03T16:29",
          "2013-12-03T16:42",
          null,
          "2013-12-03T16:49",
          "2013-12-03T16:54",
          null
        ],
        "values": [
          0.08,
          0.08,
          null,
          0.08,
          0.08,
          null,
          0.08,
          0.08,
          null,
          0.08,
          0.08,
          null,
          0.08,
          0.08,
          null,
          0.08,
          0.08,
          null,
          0.08,
          0.08,
          null,
          0.08,
          0.08,
          null,
          0.08,
          0.08,
          null,
          0.08,
          0.08,
          null,
          0.08,
          0.08,
          null,
          0.08,
          0.08,
          null,
          0.08,
          0.08,
          null,
          0.08,
          0.08,
          null,
          0.08,
          0.08,
          null,
          0.08,
          0.08,
          null,
          0.08,
          0.08,
          null,
          0.08,
          0.08,
          null,
          0.08,
          0.08,
          null
        ]
      }
    ]
  }
}
